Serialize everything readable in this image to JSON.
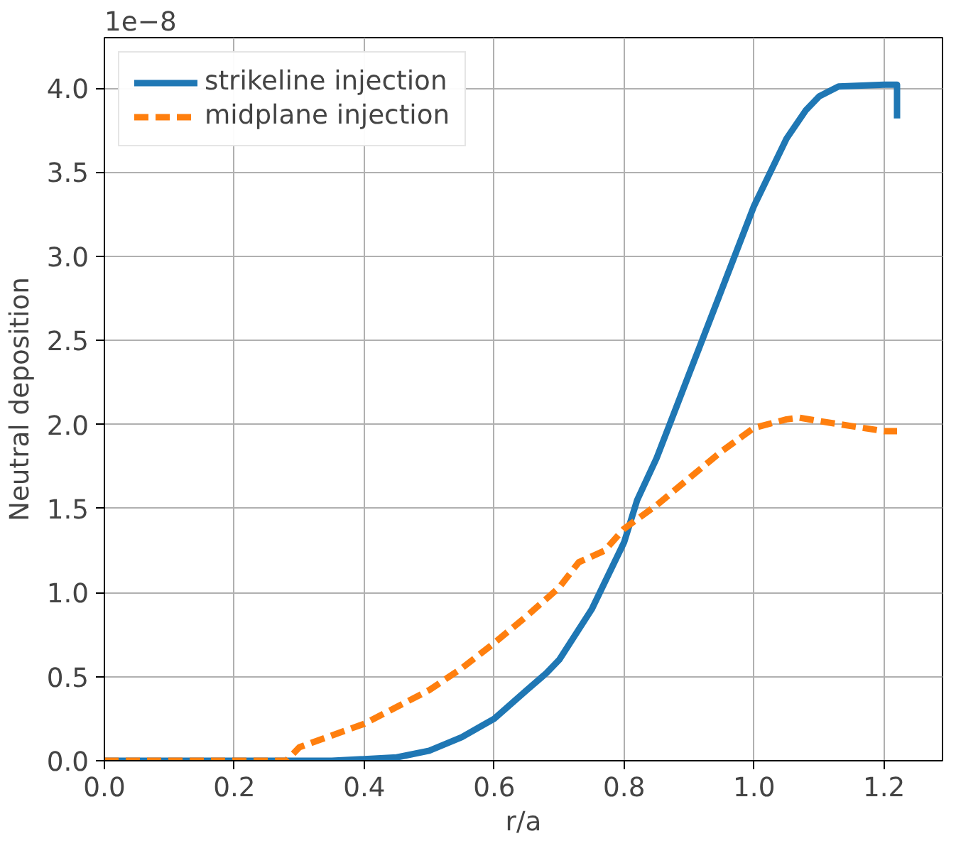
{
  "chart_data": {
    "type": "line",
    "xlabel": "r/a",
    "ylabel": "Neutral deposition",
    "annotations": [
      "1e−8"
    ],
    "xlim": [
      0,
      1.29
    ],
    "ylim": [
      0,
      4.3
    ],
    "xticks": [
      {
        "value": 0,
        "label": "0.0"
      },
      0.2,
      0.4,
      0.6,
      0.8,
      {
        "value": 1,
        "label": "1.0"
      },
      1.2
    ],
    "yticks": [
      {
        "value": 0,
        "label": "0.0"
      },
      0.5,
      {
        "value": 1,
        "label": "1.0"
      },
      1.5,
      {
        "value": 2,
        "label": "2.0"
      },
      2.5,
      {
        "value": 3,
        "label": "3.0"
      },
      3.5,
      {
        "value": 4,
        "label": "4.0"
      }
    ],
    "grid": true,
    "legend": "top left",
    "series": [
      {
        "name": "strikeline injection",
        "color": "#1f77b4",
        "line_style": "solid",
        "x": [
          0,
          0.35,
          0.4,
          0.45,
          0.5,
          0.55,
          0.6,
          0.65,
          0.68,
          0.7,
          0.75,
          0.8,
          0.82,
          0.85,
          0.88,
          0.9,
          0.95,
          1.0,
          1.05,
          1.08,
          1.1,
          1.13,
          1.2,
          1.22,
          1.22
        ],
        "values": [
          0,
          0,
          0.01,
          0.02,
          0.06,
          0.14,
          0.25,
          0.42,
          0.52,
          0.6,
          0.9,
          1.3,
          1.55,
          1.8,
          2.1,
          2.3,
          2.8,
          3.3,
          3.7,
          3.87,
          3.95,
          4.01,
          4.02,
          4.02,
          3.82
        ]
      },
      {
        "name": "midplane injection",
        "color": "#ff7f0e",
        "line_style": "dashed",
        "x": [
          0,
          0.28,
          0.3,
          0.35,
          0.4,
          0.45,
          0.5,
          0.55,
          0.6,
          0.65,
          0.7,
          0.73,
          0.77,
          0.8,
          0.85,
          0.9,
          0.95,
          1.0,
          1.05,
          1.07,
          1.1,
          1.15,
          1.2,
          1.22
        ],
        "values": [
          0,
          0,
          0.08,
          0.15,
          0.22,
          0.32,
          0.42,
          0.55,
          0.7,
          0.86,
          1.03,
          1.18,
          1.25,
          1.38,
          1.52,
          1.68,
          1.84,
          1.98,
          2.03,
          2.04,
          2.02,
          1.99,
          1.96,
          1.96
        ]
      }
    ]
  }
}
